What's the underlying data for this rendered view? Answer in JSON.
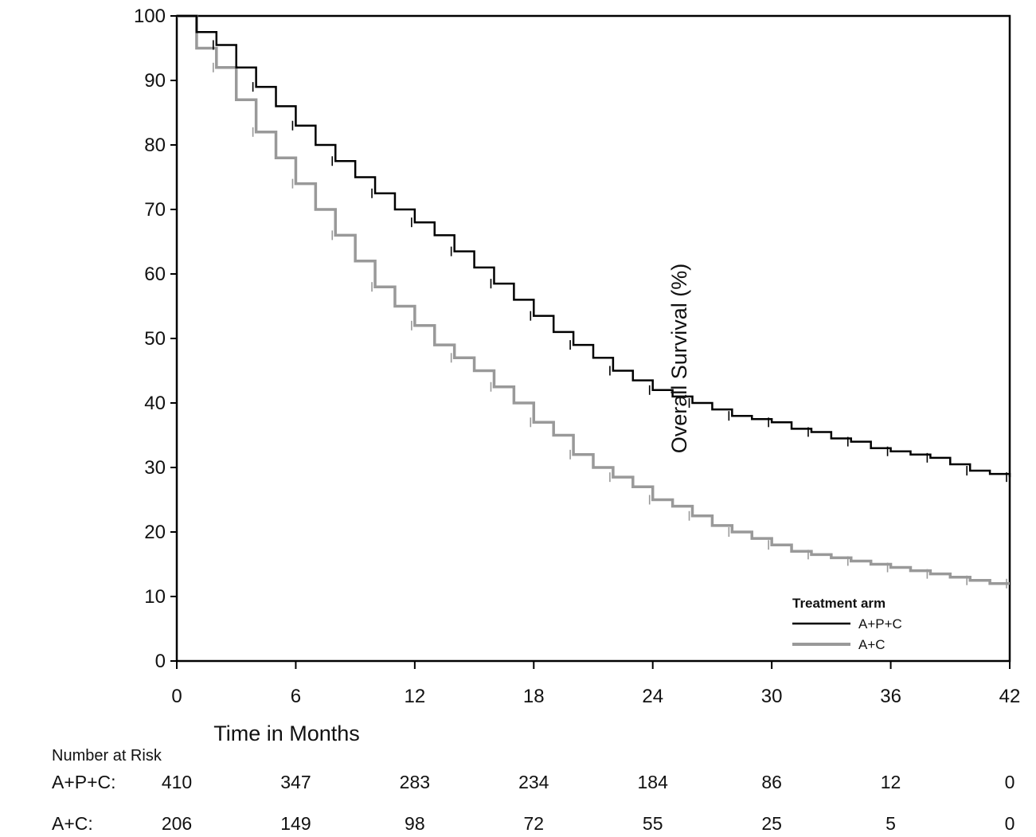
{
  "chart_data": {
    "type": "line",
    "subtype": "kaplan-meier",
    "title": "",
    "xlabel": "Time in Months",
    "ylabel": "Overall Survival (%)",
    "xlim": [
      0,
      42
    ],
    "ylim": [
      0,
      100
    ],
    "x_ticks": [
      0,
      6,
      12,
      18,
      24,
      30,
      36,
      42
    ],
    "y_ticks": [
      0,
      10,
      20,
      30,
      40,
      50,
      60,
      70,
      80,
      90,
      100
    ],
    "grid": false,
    "legend": {
      "title": "Treatment arm",
      "placement": "bottom-right",
      "entries": [
        {
          "label": "A+P+C",
          "color": "#000000"
        },
        {
          "label": "A+C",
          "color": "#999999"
        }
      ]
    },
    "series": [
      {
        "name": "A+P+C",
        "color": "#000000",
        "points": [
          [
            0,
            100
          ],
          [
            1,
            97.5
          ],
          [
            2,
            95.5
          ],
          [
            3,
            92
          ],
          [
            4,
            89
          ],
          [
            5,
            86
          ],
          [
            6,
            83
          ],
          [
            7,
            80
          ],
          [
            8,
            77.5
          ],
          [
            9,
            75
          ],
          [
            10,
            72.5
          ],
          [
            11,
            70
          ],
          [
            12,
            68
          ],
          [
            13,
            66
          ],
          [
            14,
            63.5
          ],
          [
            15,
            61
          ],
          [
            16,
            58.5
          ],
          [
            17,
            56
          ],
          [
            18,
            53.5
          ],
          [
            19,
            51
          ],
          [
            20,
            49
          ],
          [
            21,
            47
          ],
          [
            22,
            45
          ],
          [
            23,
            43.5
          ],
          [
            24,
            42
          ],
          [
            25,
            41
          ],
          [
            26,
            40
          ],
          [
            27,
            39
          ],
          [
            28,
            38
          ],
          [
            29,
            37.5
          ],
          [
            30,
            37
          ],
          [
            31,
            36
          ],
          [
            32,
            35.5
          ],
          [
            33,
            34.5
          ],
          [
            34,
            34
          ],
          [
            35,
            33
          ],
          [
            36,
            32.5
          ],
          [
            37,
            32
          ],
          [
            38,
            31.5
          ],
          [
            39,
            30.5
          ],
          [
            40,
            29.5
          ],
          [
            41,
            29
          ],
          [
            42,
            28.5
          ]
        ]
      },
      {
        "name": "A+C",
        "color": "#999999",
        "points": [
          [
            0,
            100
          ],
          [
            1,
            95
          ],
          [
            2,
            92
          ],
          [
            3,
            87
          ],
          [
            4,
            82
          ],
          [
            5,
            78
          ],
          [
            6,
            74
          ],
          [
            7,
            70
          ],
          [
            8,
            66
          ],
          [
            9,
            62
          ],
          [
            10,
            58
          ],
          [
            11,
            55
          ],
          [
            12,
            52
          ],
          [
            13,
            49
          ],
          [
            14,
            47
          ],
          [
            15,
            45
          ],
          [
            16,
            42.5
          ],
          [
            17,
            40
          ],
          [
            18,
            37
          ],
          [
            19,
            35
          ],
          [
            20,
            32
          ],
          [
            21,
            30
          ],
          [
            22,
            28.5
          ],
          [
            23,
            27
          ],
          [
            24,
            25
          ],
          [
            25,
            24
          ],
          [
            26,
            22.5
          ],
          [
            27,
            21
          ],
          [
            28,
            20
          ],
          [
            29,
            19
          ],
          [
            30,
            18
          ],
          [
            31,
            17
          ],
          [
            32,
            16.5
          ],
          [
            33,
            16
          ],
          [
            34,
            15.5
          ],
          [
            35,
            15
          ],
          [
            36,
            14.5
          ],
          [
            37,
            14
          ],
          [
            38,
            13.5
          ],
          [
            39,
            13
          ],
          [
            40,
            12.5
          ],
          [
            41,
            12
          ],
          [
            42,
            12
          ]
        ]
      }
    ],
    "number_at_risk": {
      "title": "Number at Risk",
      "times": [
        0,
        6,
        12,
        18,
        24,
        30,
        36,
        42
      ],
      "rows": [
        {
          "label": "A+P+C:",
          "values": [
            410,
            347,
            283,
            234,
            184,
            86,
            12,
            0
          ]
        },
        {
          "label": "A+C:",
          "values": [
            206,
            149,
            98,
            72,
            55,
            25,
            5,
            0
          ]
        }
      ]
    }
  }
}
